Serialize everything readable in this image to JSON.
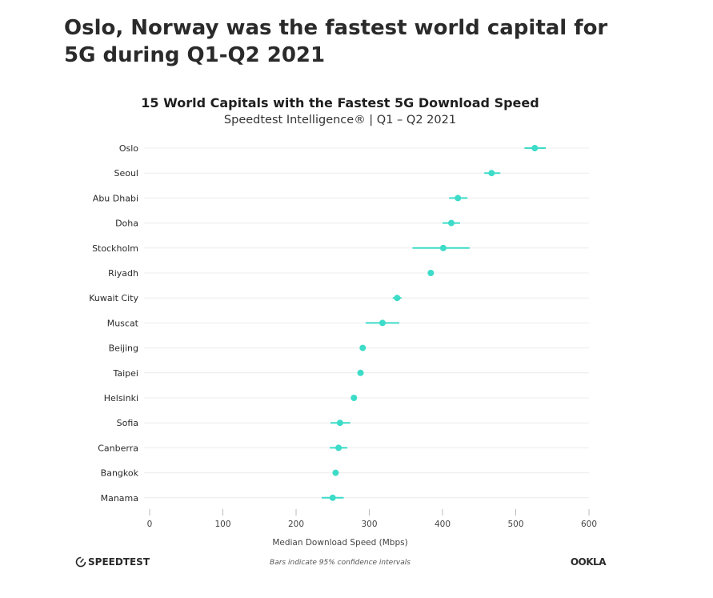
{
  "headline": "Oslo, Norway was the fastest world capital for 5G during Q1-Q2 2021",
  "chart_data": {
    "type": "scatter",
    "title": "15 World Capitals with the Fastest 5G Download Speed",
    "subtitle": "Speedtest Intelligence® | Q1 – Q2 2021",
    "xlabel": "Median Download Speed (Mbps)",
    "ylabel": "",
    "xlim": [
      0,
      600
    ],
    "xticks": [
      "0",
      "100",
      "200",
      "300",
      "400",
      "500",
      "600"
    ],
    "grid": true,
    "color": "#3ddcc8",
    "categories": [
      "Oslo",
      "Seoul",
      "Abu Dhabi",
      "Doha",
      "Stockholm",
      "Riyadh",
      "Kuwait City",
      "Muscat",
      "Beijing",
      "Taipei",
      "Helsinki",
      "Sofia",
      "Canberra",
      "Bangkok",
      "Manama"
    ],
    "values": [
      526,
      467,
      421,
      412,
      401,
      384,
      338,
      318,
      291,
      288,
      279,
      260,
      258,
      254,
      250
    ],
    "ci_low": [
      512,
      457,
      409,
      400,
      359,
      382,
      332,
      295,
      289,
      286,
      277,
      247,
      246,
      252,
      235
    ],
    "ci_high": [
      541,
      479,
      434,
      424,
      437,
      386,
      344,
      341,
      293,
      290,
      281,
      274,
      270,
      256,
      265
    ],
    "footnote": "Bars indicate 95% confidence intervals"
  },
  "brands": {
    "left": "SPEEDTEST",
    "right": "OOKLA"
  }
}
